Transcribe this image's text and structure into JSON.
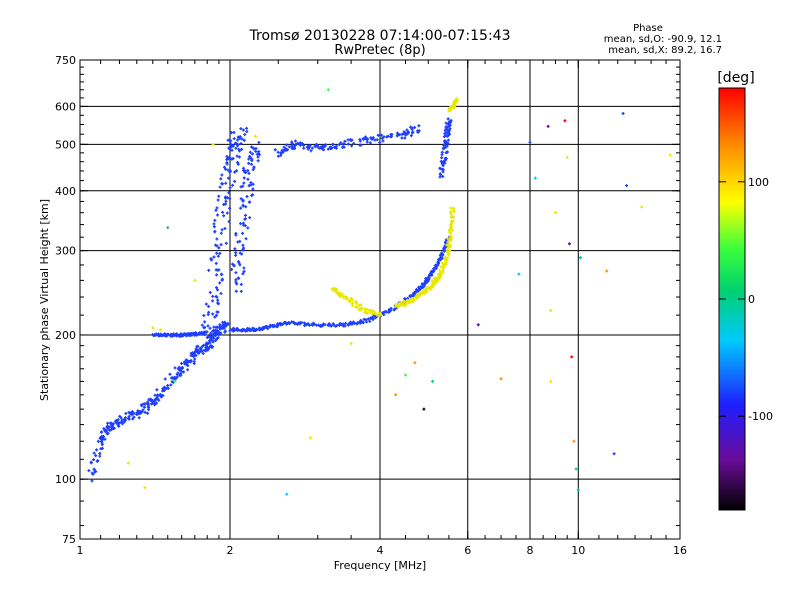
{
  "header": {
    "title_line1": "Tromsø 20130228 07:14:00-07:15:43",
    "title_line2": "RwPretec (8p)",
    "stats_title": "Phase",
    "stats_o": "mean, sd,O: -90.9, 12.1",
    "stats_x": "mean, sd,X:  89.2, 16.7"
  },
  "chart_data": {
    "type": "scatter",
    "title": "Tromsø 20130228 07:14:00-07:15:43",
    "subtitle": "RwPretec (8p)",
    "xlabel": "Frequency [MHz]",
    "ylabel": "Stationary phase Virtual Height [km]",
    "x_scale": "log",
    "y_scale": "log",
    "xlim": [
      1,
      16
    ],
    "ylim": [
      75,
      750
    ],
    "x_ticks": [
      {
        "value": 1,
        "label": "1"
      },
      {
        "value": 2,
        "label": "2"
      },
      {
        "value": 4,
        "label": "4"
      },
      {
        "value": 6,
        "label": "6"
      },
      {
        "value": 8,
        "label": "8"
      },
      {
        "value": 10,
        "label": "10"
      },
      {
        "value": 16,
        "label": "16"
      }
    ],
    "y_ticks": [
      {
        "value": 75,
        "label": "75"
      },
      {
        "value": 100,
        "label": "100"
      },
      {
        "value": 200,
        "label": "200"
      },
      {
        "value": 300,
        "label": "300"
      },
      {
        "value": 400,
        "label": "400"
      },
      {
        "value": 500,
        "label": "500"
      },
      {
        "value": 600,
        "label": "600"
      },
      {
        "value": 750,
        "label": "750"
      }
    ],
    "grid_x": [
      2,
      4,
      6,
      8,
      10
    ],
    "grid_y": [
      100,
      200,
      300,
      400,
      500,
      600
    ],
    "grid": true,
    "colorbar": {
      "label": "[deg]",
      "range": [
        -180,
        180
      ],
      "ticks": [
        {
          "value": 100,
          "label": "100"
        },
        {
          "value": 0,
          "label": "0"
        },
        {
          "value": -100,
          "label": "-100"
        }
      ]
    },
    "traces": [
      {
        "phase": -95,
        "points": [
          [
            1.05,
            100
          ],
          [
            1.1,
            122
          ],
          [
            1.15,
            128
          ],
          [
            1.2,
            132
          ],
          [
            1.3,
            137
          ],
          [
            1.38,
            143
          ],
          [
            1.45,
            150
          ],
          [
            1.55,
            165
          ],
          [
            1.65,
            175
          ],
          [
            1.72,
            185
          ],
          [
            1.8,
            190
          ],
          [
            1.85,
            198
          ],
          [
            1.9,
            205
          ],
          [
            1.95,
            210
          ]
        ],
        "spread": 0.035
      },
      {
        "phase": -95,
        "points": [
          [
            1.8,
            200
          ],
          [
            1.85,
            240
          ],
          [
            1.9,
            300
          ],
          [
            1.95,
            380
          ],
          [
            2.0,
            450
          ],
          [
            2.05,
            500
          ],
          [
            2.1,
            530
          ]
        ],
        "spread": 0.06
      },
      {
        "phase": -95,
        "points": [
          [
            2.05,
            250
          ],
          [
            2.1,
            300
          ],
          [
            2.15,
            380
          ],
          [
            2.2,
            450
          ],
          [
            2.25,
            500
          ]
        ],
        "spread": 0.05
      },
      {
        "phase": -95,
        "points": [
          [
            1.4,
            200
          ],
          [
            1.5,
            200
          ],
          [
            1.6,
            200
          ],
          [
            1.7,
            201
          ],
          [
            1.8,
            202
          ]
        ],
        "spread": 0.01
      },
      {
        "phase": -95,
        "points": [
          [
            2.0,
            205
          ],
          [
            2.2,
            205
          ],
          [
            2.4,
            208
          ],
          [
            2.6,
            212
          ],
          [
            3.0,
            210
          ],
          [
            3.4,
            210
          ],
          [
            3.8,
            215
          ],
          [
            4.2,
            225
          ],
          [
            4.6,
            240
          ],
          [
            4.9,
            255
          ],
          [
            5.1,
            270
          ],
          [
            5.3,
            290
          ],
          [
            5.5,
            320
          ]
        ],
        "spread": 0.012
      },
      {
        "phase": -95,
        "points": [
          [
            2.5,
            480
          ],
          [
            2.7,
            500
          ],
          [
            3.0,
            490
          ],
          [
            3.3,
            500
          ],
          [
            3.8,
            510
          ],
          [
            4.4,
            520
          ],
          [
            4.8,
            540
          ]
        ],
        "spread": 0.03
      },
      {
        "phase": -95,
        "points": [
          [
            5.3,
            430
          ],
          [
            5.4,
            480
          ],
          [
            5.45,
            530
          ],
          [
            5.5,
            560
          ]
        ],
        "spread": 0.02
      },
      {
        "phase": 95,
        "points": [
          [
            4.3,
            230
          ],
          [
            4.6,
            235
          ],
          [
            4.9,
            245
          ],
          [
            5.1,
            255
          ],
          [
            5.3,
            270
          ],
          [
            5.45,
            290
          ],
          [
            5.55,
            330
          ],
          [
            5.6,
            370
          ]
        ],
        "spread": 0.015
      },
      {
        "phase": 95,
        "points": [
          [
            3.2,
            250
          ],
          [
            3.4,
            240
          ],
          [
            3.7,
            225
          ],
          [
            4.0,
            220
          ]
        ],
        "spread": 0.02
      },
      {
        "phase": 95,
        "points": [
          [
            5.5,
            590
          ],
          [
            5.6,
            600
          ],
          [
            5.7,
            620
          ]
        ],
        "spread": 0.01
      }
    ],
    "scattered": [
      {
        "x": 1.25,
        "y": 108,
        "phase": 95
      },
      {
        "x": 1.35,
        "y": 96,
        "phase": 95
      },
      {
        "x": 1.4,
        "y": 207,
        "phase": 95
      },
      {
        "x": 1.45,
        "y": 205,
        "phase": 95
      },
      {
        "x": 1.5,
        "y": 335,
        "phase": -5
      },
      {
        "x": 1.55,
        "y": 160,
        "phase": 40
      },
      {
        "x": 1.7,
        "y": 260,
        "phase": 95
      },
      {
        "x": 1.85,
        "y": 500,
        "phase": 95
      },
      {
        "x": 2.25,
        "y": 520,
        "phase": 95
      },
      {
        "x": 2.6,
        "y": 93,
        "phase": -40
      },
      {
        "x": 2.9,
        "y": 122,
        "phase": 95
      },
      {
        "x": 3.15,
        "y": 650,
        "phase": 40
      },
      {
        "x": 3.5,
        "y": 192,
        "phase": 95
      },
      {
        "x": 4.3,
        "y": 150,
        "phase": 130
      },
      {
        "x": 4.5,
        "y": 165,
        "phase": 30
      },
      {
        "x": 4.7,
        "y": 175,
        "phase": 130
      },
      {
        "x": 4.9,
        "y": 140,
        "phase": -160
      },
      {
        "x": 5.1,
        "y": 160,
        "phase": -5
      },
      {
        "x": 6.3,
        "y": 210,
        "phase": -140
      },
      {
        "x": 7.0,
        "y": 162,
        "phase": 130
      },
      {
        "x": 7.6,
        "y": 268,
        "phase": -30
      },
      {
        "x": 8.0,
        "y": 505,
        "phase": -100
      },
      {
        "x": 8.2,
        "y": 425,
        "phase": -60
      },
      {
        "x": 8.7,
        "y": 545,
        "phase": -140
      },
      {
        "x": 8.8,
        "y": 225,
        "phase": 95
      },
      {
        "x": 8.8,
        "y": 160,
        "phase": 95
      },
      {
        "x": 9.0,
        "y": 360,
        "phase": 95
      },
      {
        "x": 9.4,
        "y": 560,
        "phase": 160
      },
      {
        "x": 9.5,
        "y": 470,
        "phase": 95
      },
      {
        "x": 9.6,
        "y": 310,
        "phase": -140
      },
      {
        "x": 9.7,
        "y": 180,
        "phase": 160
      },
      {
        "x": 9.8,
        "y": 120,
        "phase": 130
      },
      {
        "x": 9.9,
        "y": 105,
        "phase": -10
      },
      {
        "x": 10.0,
        "y": 95,
        "phase": -10
      },
      {
        "x": 10.1,
        "y": 290,
        "phase": 0
      },
      {
        "x": 11.4,
        "y": 272,
        "phase": 140
      },
      {
        "x": 11.8,
        "y": 113,
        "phase": -100
      },
      {
        "x": 12.3,
        "y": 580,
        "phase": -100
      },
      {
        "x": 12.5,
        "y": 410,
        "phase": -100
      },
      {
        "x": 13.4,
        "y": 370,
        "phase": 95
      },
      {
        "x": 15.3,
        "y": 475,
        "phase": 95
      }
    ]
  }
}
